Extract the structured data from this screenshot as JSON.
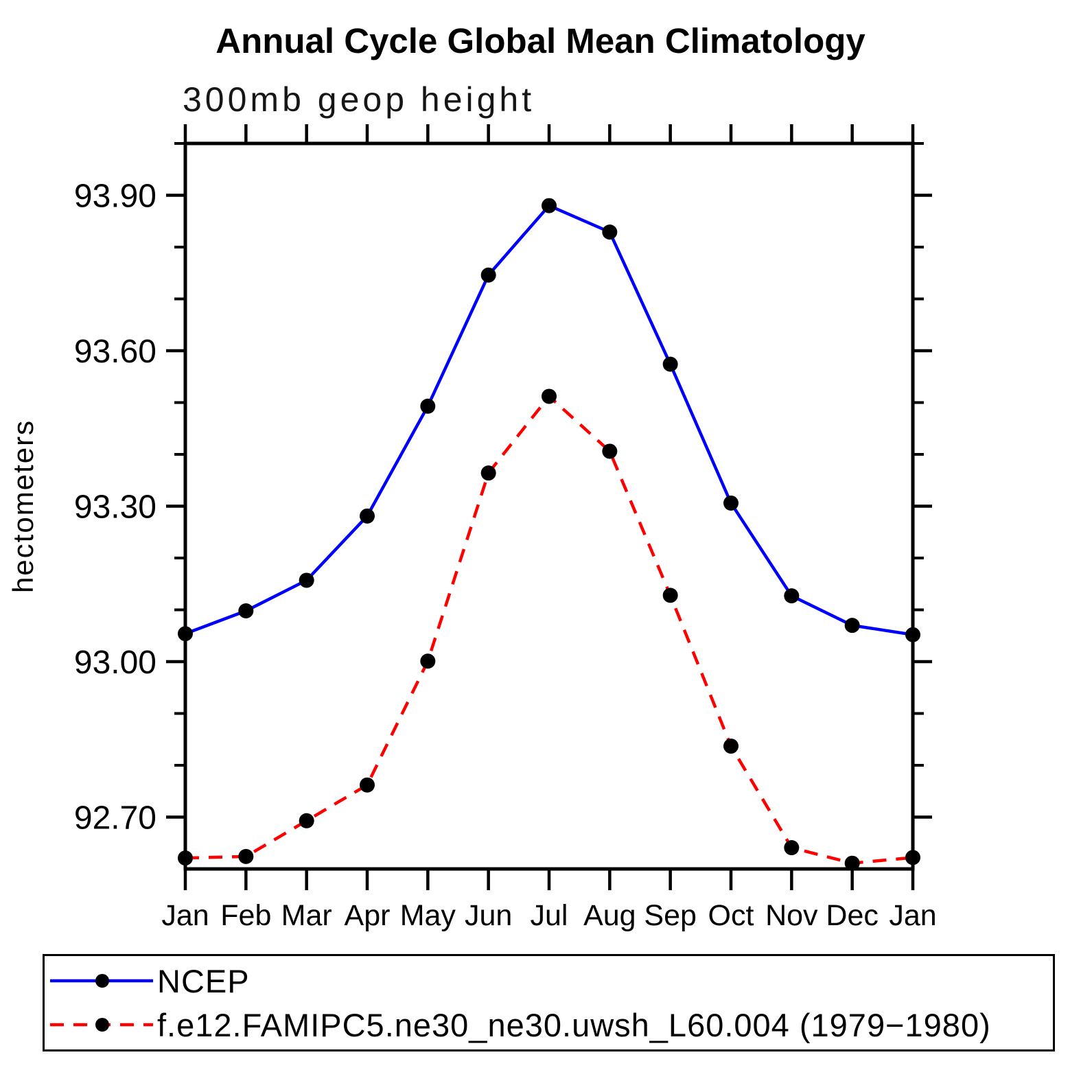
{
  "chart": {
    "title": "Annual Cycle Global Mean Climatology",
    "subtitle": "300mb geop height",
    "ylabel": "hectometers"
  },
  "chart_data": {
    "type": "line",
    "title": "Annual Cycle Global Mean Climatology",
    "subtitle": "300mb geop height",
    "xlabel": "",
    "ylabel": "hectometers",
    "categories": [
      "Jan",
      "Feb",
      "Mar",
      "Apr",
      "May",
      "Jun",
      "Jul",
      "Aug",
      "Sep",
      "Oct",
      "Nov",
      "Dec",
      "Jan"
    ],
    "series": [
      {
        "name": "NCEP",
        "color": "#0000ff",
        "line_style": "solid",
        "marker": "filled-circle",
        "marker_color": "#000000",
        "values": [
          93.054,
          93.098,
          93.157,
          93.281,
          93.493,
          93.746,
          93.88,
          93.829,
          93.574,
          93.306,
          93.127,
          93.07,
          93.052
        ]
      },
      {
        "name": "f.e12.FAMIPC5.ne30_ne30.uwsh_L60.004 (1979−1980)",
        "color": "#ff0000",
        "line_style": "dashed",
        "marker": "filled-circle",
        "marker_color": "#000000",
        "values": [
          92.621,
          92.624,
          92.693,
          92.762,
          93.001,
          93.364,
          93.512,
          93.406,
          93.128,
          92.837,
          92.641,
          92.611,
          92.622
        ]
      }
    ],
    "ylim": [
      92.6,
      94.0
    ],
    "yticks_major": [
      92.7,
      93.0,
      93.3,
      93.6,
      93.9
    ],
    "ytick_min": 92.7,
    "ytick_max": 94.0,
    "ytick_minor_step": 0.1,
    "grid": false,
    "axis_color": "#000000",
    "legend_position": "bottom-left"
  }
}
